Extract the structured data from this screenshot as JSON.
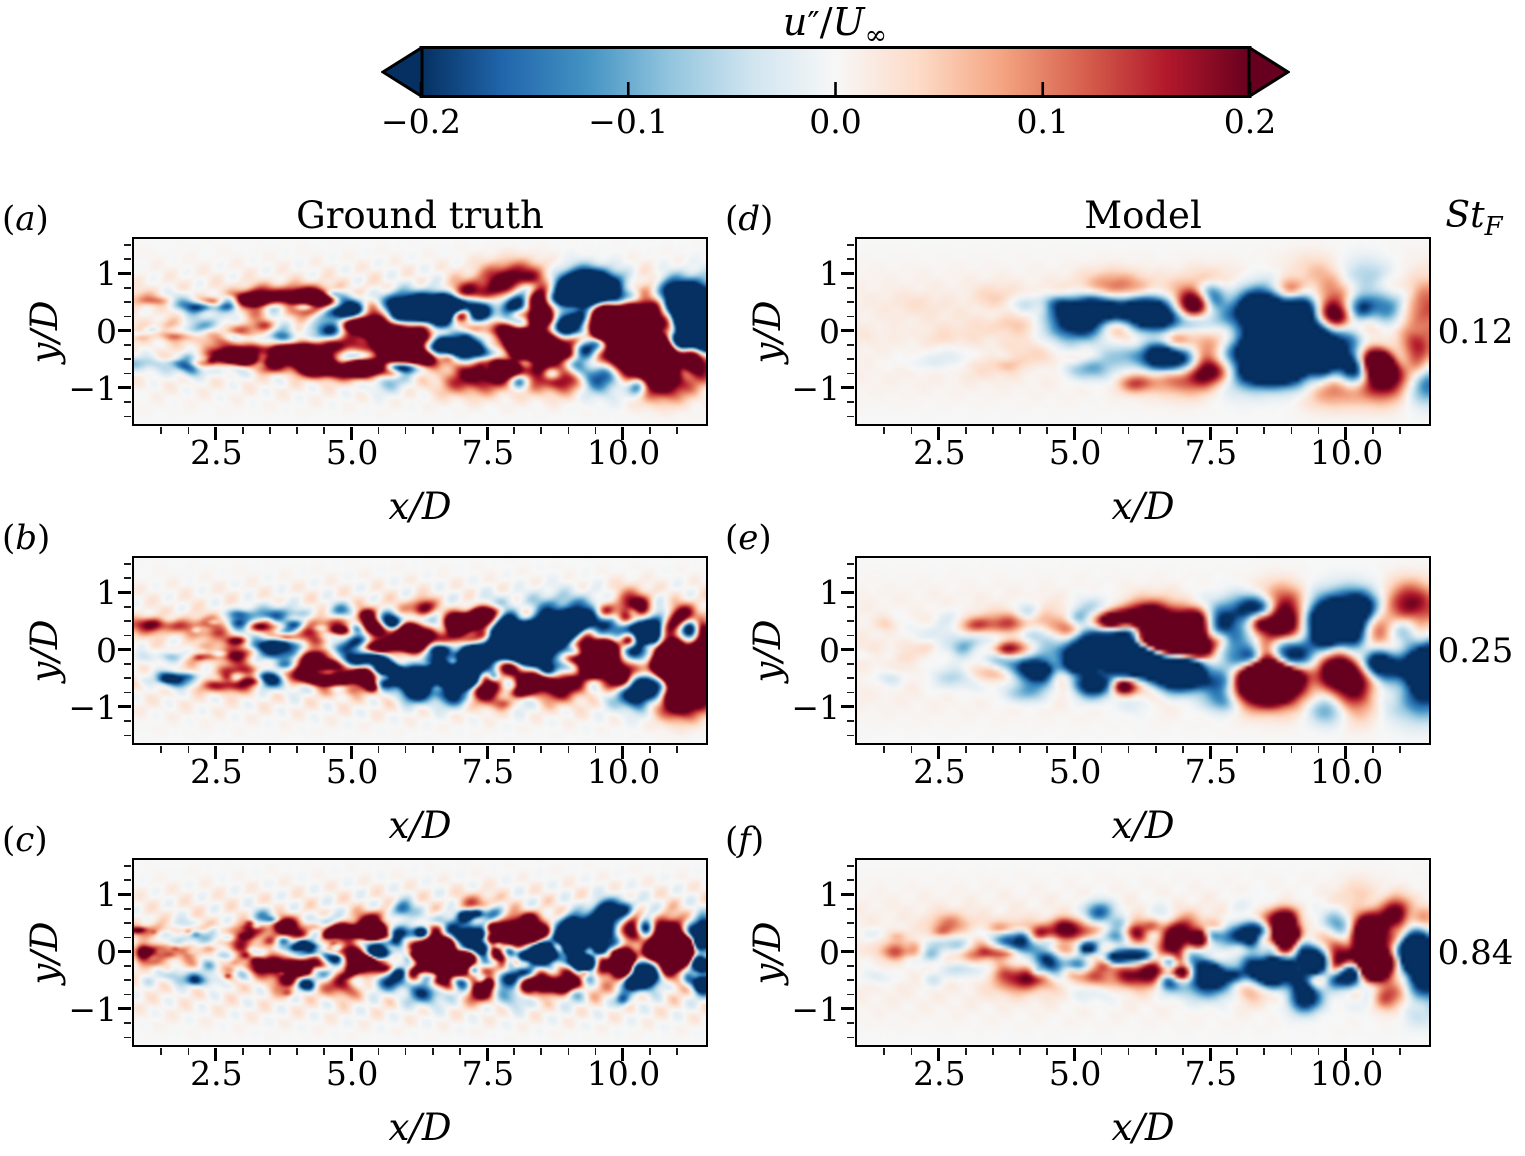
{
  "figure": {
    "paren_open": "(",
    "paren_close": ")",
    "colorbar": {
      "title": {
        "var_u": "u",
        "primes": "″",
        "slash": "/",
        "var_U": "U",
        "sub_inf": "∞"
      },
      "tick_labels": [
        "−0.2",
        "−0.1",
        "0.0",
        "0.1",
        "0.2"
      ],
      "tick_values": [
        -0.2,
        -0.1,
        0.0,
        0.1,
        0.2
      ],
      "range": [
        -0.2,
        0.2
      ],
      "extend": "both",
      "cmap": "RdBu_r",
      "cmap_stops": [
        "#053061",
        "#2166ac",
        "#4393c3",
        "#92c5de",
        "#d1e5f0",
        "#f7f7f7",
        "#fddbc7",
        "#f4a582",
        "#d6604d",
        "#b2182b",
        "#67001f"
      ]
    },
    "columns": [
      {
        "title": "Ground truth"
      },
      {
        "title": "Model"
      }
    ],
    "st_header": {
      "base": "St",
      "sub": "F"
    },
    "row_st_values": [
      "0.12",
      "0.25",
      "0.84"
    ],
    "axes": {
      "x": {
        "label_parts": [
          "x",
          "/",
          "D"
        ],
        "range": [
          1.0,
          11.5
        ],
        "major_ticks": [
          2.5,
          5.0,
          7.5,
          10.0
        ],
        "major_labels": [
          "2.5",
          "5.0",
          "7.5",
          "10.0"
        ],
        "minor_step": 0.5
      },
      "y": {
        "label_parts": [
          "y",
          "/",
          "D"
        ],
        "range": [
          -1.6,
          1.6
        ],
        "major_ticks": [
          1,
          0,
          -1
        ],
        "major_labels": [
          "1",
          "0",
          "−1"
        ],
        "minor_step": 0.25
      }
    },
    "chart_data": [
      {
        "panel_letter": "a",
        "type": "heatmap",
        "row": 0,
        "col": 0,
        "source": "Ground truth",
        "st_f": 0.12,
        "quantity": "u″/U∞",
        "clim": [
          -0.2,
          0.2
        ],
        "x_range": [
          1.0,
          11.5
        ],
        "y_range": [
          -1.6,
          1.6
        ],
        "cmap": "RdBu_r",
        "field_style": {
          "seed": 11,
          "res": [
            285,
            92
          ],
          "n": 400,
          "core": 0.22,
          "off0": 0.55,
          "merge": 0.3,
          "sp0": 0.09,
          "sp1": 0.5,
          "r0": 0.09,
          "r1": 0.2,
          "rgrow": 1.0,
          "elong": 2.0,
          "xbias": 0.85,
          "onset": 0.0,
          "a0": 0.35,
          "ampk": 1.45,
          "rip": 0.22
        }
      },
      {
        "panel_letter": "d",
        "type": "heatmap",
        "row": 0,
        "col": 1,
        "source": "Model",
        "st_f": 0.12,
        "quantity": "u″/U∞",
        "clim": [
          -0.2,
          0.2
        ],
        "x_range": [
          1.0,
          11.5
        ],
        "y_range": [
          -1.6,
          1.6
        ],
        "cmap": "RdBu_r",
        "field_style": {
          "seed": 22,
          "res": [
            150,
            48
          ],
          "n": 220,
          "core": 0.22,
          "off0": 0.55,
          "merge": 0.3,
          "sp0": 0.07,
          "sp1": 0.55,
          "r0": 0.15,
          "r1": 0.24,
          "rgrow": 0.9,
          "elong": 1.5,
          "xbias": 0.75,
          "onset": 0.15,
          "a0": 0.06,
          "ampk": 1.2,
          "rip": 0.04
        }
      },
      {
        "panel_letter": "b",
        "type": "heatmap",
        "row": 1,
        "col": 0,
        "source": "Ground truth",
        "st_f": 0.25,
        "quantity": "u″/U∞",
        "clim": [
          -0.2,
          0.2
        ],
        "x_range": [
          1.0,
          11.5
        ],
        "y_range": [
          -1.6,
          1.6
        ],
        "cmap": "RdBu_r",
        "field_style": {
          "seed": 33,
          "res": [
            285,
            92
          ],
          "n": 450,
          "core": 0.3,
          "off0": 0.5,
          "merge": 0.4,
          "sp0": 0.11,
          "sp1": 0.6,
          "r0": 0.08,
          "r1": 0.18,
          "rgrow": 0.95,
          "elong": 1.7,
          "xbias": 0.8,
          "onset": 0.0,
          "a0": 0.3,
          "ampk": 1.5,
          "rip": 0.26
        }
      },
      {
        "panel_letter": "e",
        "type": "heatmap",
        "row": 1,
        "col": 1,
        "source": "Model",
        "st_f": 0.25,
        "quantity": "u″/U∞",
        "clim": [
          -0.2,
          0.2
        ],
        "x_range": [
          1.0,
          11.5
        ],
        "y_range": [
          -1.6,
          1.6
        ],
        "cmap": "RdBu_r",
        "field_style": {
          "seed": 44,
          "res": [
            150,
            48
          ],
          "n": 260,
          "core": 0.35,
          "off0": 0.5,
          "merge": 0.35,
          "sp0": 0.1,
          "sp1": 0.6,
          "r0": 0.14,
          "r1": 0.22,
          "rgrow": 0.85,
          "elong": 1.3,
          "xbias": 0.75,
          "onset": 0.05,
          "a0": 0.18,
          "ampk": 1.25,
          "rip": 0.05
        }
      },
      {
        "panel_letter": "c",
        "type": "heatmap",
        "row": 2,
        "col": 0,
        "source": "Ground truth",
        "st_f": 0.84,
        "quantity": "u″/U∞",
        "clim": [
          -0.2,
          0.2
        ],
        "x_range": [
          1.0,
          11.5
        ],
        "y_range": [
          -1.6,
          1.6
        ],
        "cmap": "RdBu_r",
        "field_style": {
          "seed": 55,
          "res": [
            285,
            92
          ],
          "n": 600,
          "core": 0.5,
          "off0": 0.4,
          "merge": 0.4,
          "sp0": 0.16,
          "sp1": 0.55,
          "r0": 0.065,
          "r1": 0.14,
          "rgrow": 0.75,
          "elong": 1.2,
          "xbias": 0.8,
          "onset": 0.0,
          "a0": 0.3,
          "ampk": 1.4,
          "rip": 0.3,
          "spots": [
            [
              1.15,
              0.0,
              0.16,
              0.24
            ]
          ]
        }
      },
      {
        "panel_letter": "f",
        "type": "heatmap",
        "row": 2,
        "col": 1,
        "source": "Model",
        "st_f": 0.84,
        "quantity": "u″/U∞",
        "clim": [
          -0.2,
          0.2
        ],
        "x_range": [
          1.0,
          11.5
        ],
        "y_range": [
          -1.6,
          1.6
        ],
        "cmap": "RdBu_r",
        "field_style": {
          "seed": 66,
          "res": [
            160,
            50
          ],
          "n": 340,
          "core": 0.5,
          "off0": 0.4,
          "merge": 0.35,
          "sp0": 0.15,
          "sp1": 0.55,
          "r0": 0.11,
          "r1": 0.18,
          "rgrow": 0.75,
          "elong": 1.1,
          "xbias": 0.75,
          "onset": 0.05,
          "a0": 0.2,
          "ampk": 1.2,
          "rip": 0.06
        }
      }
    ]
  }
}
